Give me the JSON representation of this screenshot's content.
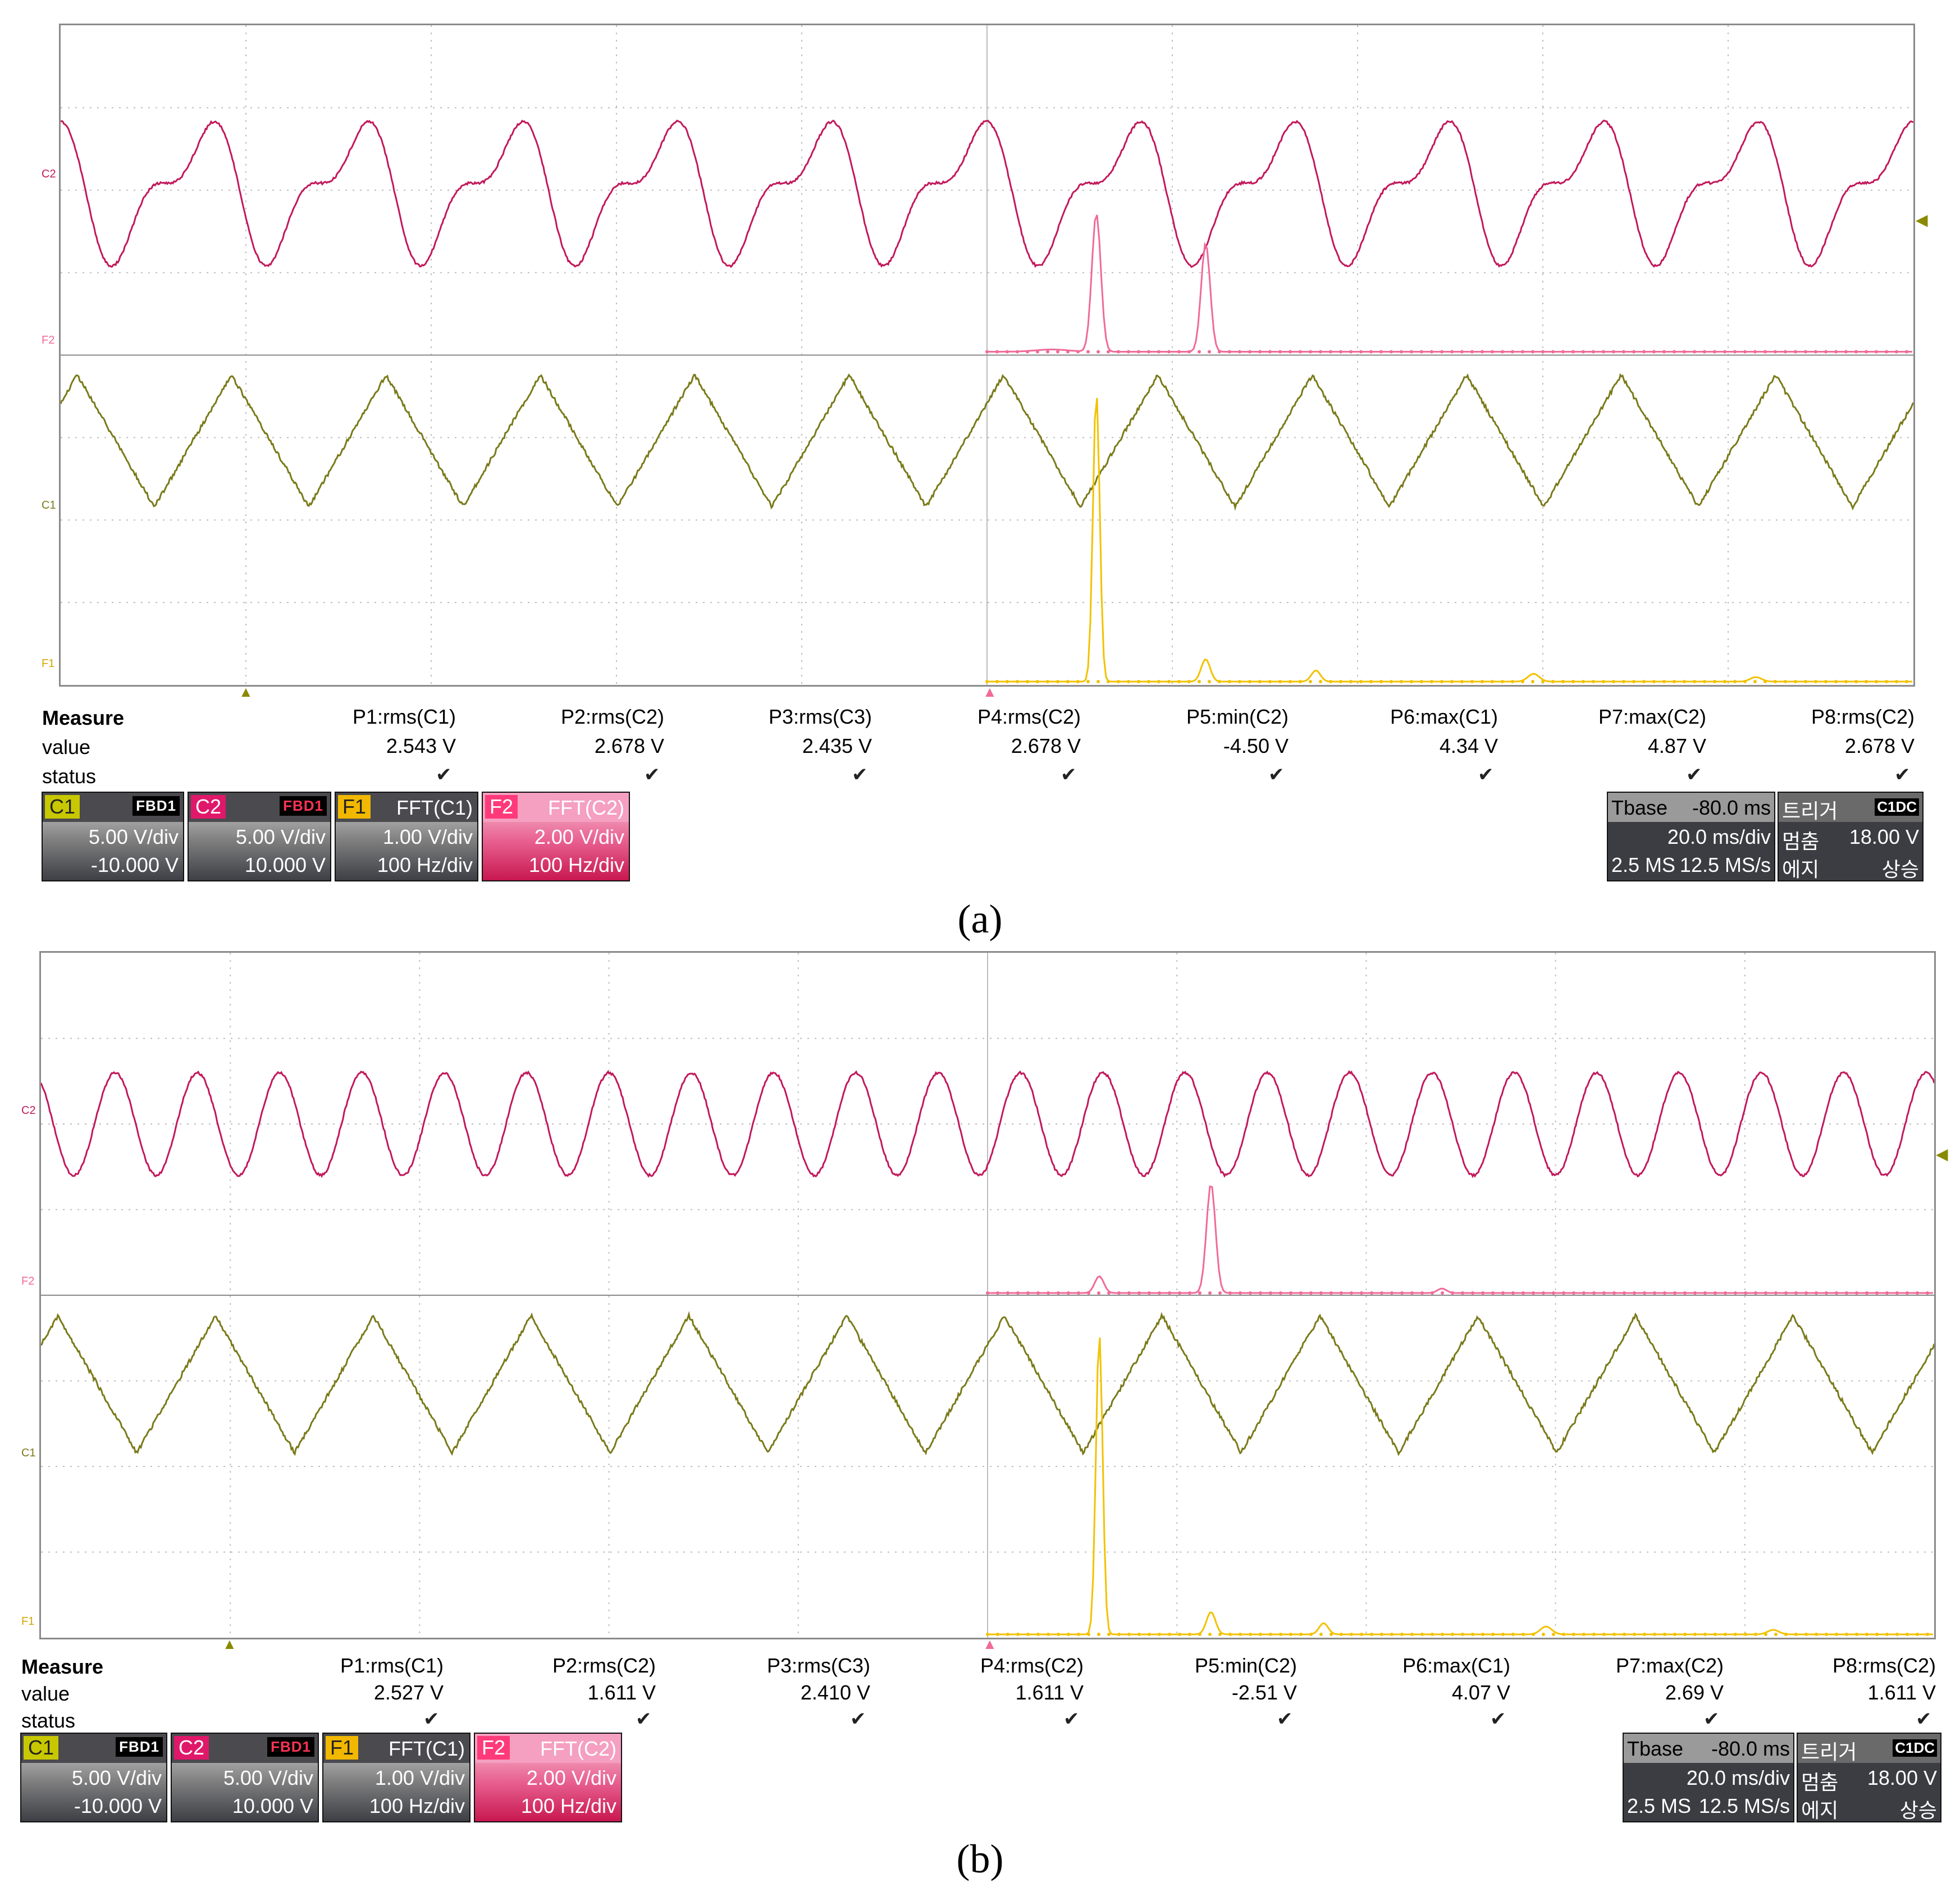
{
  "panels": [
    {
      "caption": "(a)",
      "left_labels": {
        "c2": "C2",
        "f2": "F2",
        "c1": "C1",
        "f1": "F1"
      },
      "measure": {
        "title": "Measure",
        "row_value": "value",
        "row_status": "status"
      },
      "params": [
        {
          "name": "P1:rms(C1)",
          "value": "2.543 V"
        },
        {
          "name": "P2:rms(C2)",
          "value": "2.678 V"
        },
        {
          "name": "P3:rms(C3)",
          "value": "2.435 V"
        },
        {
          "name": "P4:rms(C2)",
          "value": "2.678 V"
        },
        {
          "name": "P5:min(C2)",
          "value": "-4.50 V"
        },
        {
          "name": "P6:max(C1)",
          "value": "4.34 V"
        },
        {
          "name": "P7:max(C2)",
          "value": "4.87 V"
        },
        {
          "name": "P8:rms(C2)",
          "value": "2.678 V"
        }
      ],
      "channels": [
        {
          "tag": "C1",
          "flags": "FBD1",
          "line1": "5.00 V/div",
          "line2": "-10.000 V"
        },
        {
          "tag": "C2",
          "flags": "FBD1",
          "line1": "5.00 V/div",
          "line2": "10.000 V"
        },
        {
          "tag": "F1",
          "title": "FFT(C1)",
          "line1": "1.00 V/div",
          "line2": "100 Hz/div"
        },
        {
          "tag": "F2",
          "title": "FFT(C2)",
          "line1": "2.00 V/div",
          "line2": "100 Hz/div"
        }
      ],
      "timebase": {
        "label": "Tbase",
        "offset": "-80.0 ms",
        "per_div": "20.0 ms/div",
        "samples": "2.5 MS",
        "rate": "12.5 MS/s"
      },
      "trigger": {
        "label": "트리거",
        "chan": "C1DC",
        "mode": "멈춤",
        "level": "18.00 V",
        "type": "에지",
        "slope": "상승"
      },
      "waves": {
        "c2_cycles": 12,
        "c1_cycles": 12,
        "c2_harmonic": true
      }
    },
    {
      "caption": "(b)",
      "left_labels": {
        "c2": "C2",
        "f2": "F2",
        "c1": "C1",
        "f1": "F1"
      },
      "measure": {
        "title": "Measure",
        "row_value": "value",
        "row_status": "status"
      },
      "params": [
        {
          "name": "P1:rms(C1)",
          "value": "2.527 V"
        },
        {
          "name": "P2:rms(C2)",
          "value": "1.611 V"
        },
        {
          "name": "P3:rms(C3)",
          "value": "2.410 V"
        },
        {
          "name": "P4:rms(C2)",
          "value": "1.611 V"
        },
        {
          "name": "P5:min(C2)",
          "value": "-2.51 V"
        },
        {
          "name": "P6:max(C1)",
          "value": "4.07 V"
        },
        {
          "name": "P7:max(C2)",
          "value": "2.69 V"
        },
        {
          "name": "P8:rms(C2)",
          "value": "1.611 V"
        }
      ],
      "channels": [
        {
          "tag": "C1",
          "flags": "FBD1",
          "line1": "5.00 V/div",
          "line2": "-10.000 V"
        },
        {
          "tag": "C2",
          "flags": "FBD1",
          "line1": "5.00 V/div",
          "line2": "10.000 V"
        },
        {
          "tag": "F1",
          "title": "FFT(C1)",
          "line1": "1.00 V/div",
          "line2": "100 Hz/div"
        },
        {
          "tag": "F2",
          "title": "FFT(C2)",
          "line1": "2.00 V/div",
          "line2": "100 Hz/div"
        }
      ],
      "timebase": {
        "label": "Tbase",
        "offset": "-80.0 ms",
        "per_div": "20.0 ms/div",
        "samples": "2.5 MS",
        "rate": "12.5 MS/s"
      },
      "trigger": {
        "label": "트리거",
        "chan": "C1DC",
        "mode": "멈춤",
        "level": "18.00 V",
        "type": "에지",
        "slope": "상승"
      },
      "waves": {
        "c2_cycles": 23,
        "c1_cycles": 12,
        "c2_harmonic": false
      }
    }
  ],
  "colors": {
    "c1": "#7a7a1a",
    "c2": "#c2185b",
    "f1": "#f2c200",
    "f2": "#f06a9a",
    "grid": "#bdbdbd"
  }
}
